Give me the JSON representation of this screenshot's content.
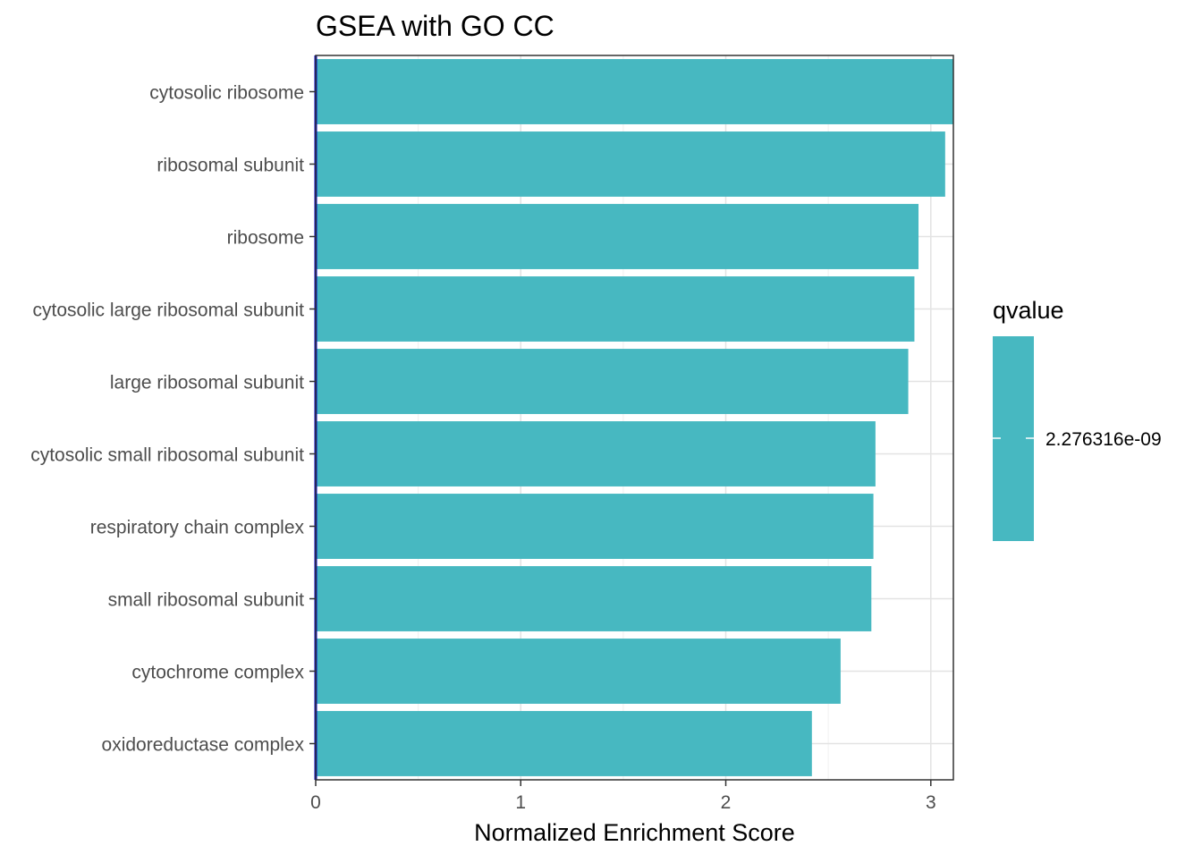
{
  "chart_data": {
    "type": "bar",
    "orientation": "horizontal",
    "title": "GSEA with GO CC",
    "xlabel": "Normalized Enrichment Score",
    "ylabel": "",
    "categories": [
      "cytosolic ribosome",
      "ribosomal subunit",
      "ribosome",
      "cytosolic large ribosomal subunit",
      "large ribosomal subunit",
      "cytosolic small ribosomal subunit",
      "respiratory chain complex",
      "small ribosomal subunit",
      "cytochrome complex",
      "oxidoreductase complex"
    ],
    "values": [
      3.11,
      3.07,
      2.94,
      2.92,
      2.89,
      2.73,
      2.72,
      2.71,
      2.56,
      2.42
    ],
    "xlim": [
      0,
      3.11
    ],
    "xticks": [
      0,
      1,
      2,
      3
    ],
    "grid": true,
    "bar_color": "#47B8C1",
    "reference_line": {
      "x": 0,
      "color": "#0000CD"
    },
    "legend": {
      "title": "qvalue",
      "position": "right",
      "label": "2.276316e-09",
      "color": "#47B8C1"
    }
  }
}
